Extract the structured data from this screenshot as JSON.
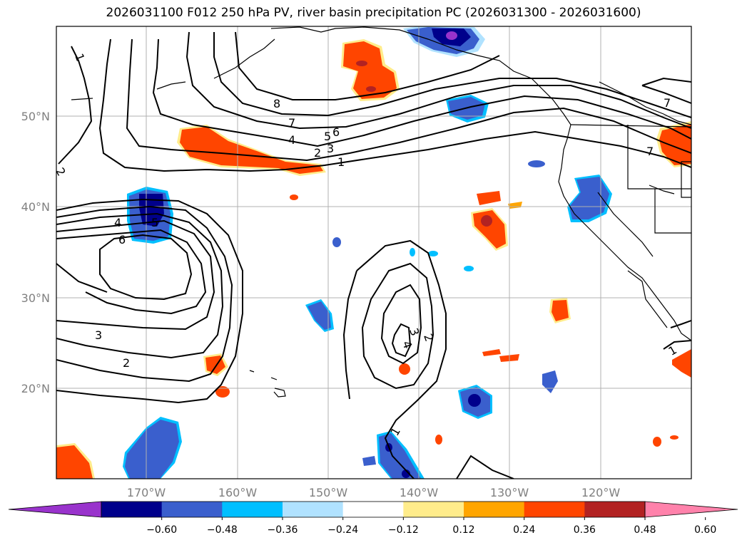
{
  "title": "2026031100 F012 250 hPa PV, river basin precipitation PC (2026031300 - 2026031600)",
  "lat_labels": [
    "50°N",
    "40°N",
    "30°N",
    "20°N"
  ],
  "lon_labels": [
    "170°W",
    "160°W",
    "150°W",
    "140°W",
    "130°W",
    "120°W"
  ],
  "colorbar": {
    "colors": [
      "#9933cc",
      "#00008b",
      "#3a5fcd",
      "#00bfff",
      "#b0e2ff",
      "#ffffff",
      "#ffec8b",
      "#ffa500",
      "#ff4500",
      "#b22222",
      "#ff82ab"
    ],
    "labels": [
      "−0.60",
      "−0.48",
      "−0.36",
      "−0.24",
      "−0.12",
      "0.12",
      "0.24",
      "0.36",
      "0.48",
      "0.60"
    ]
  },
  "contour_labels": [
    "1",
    "2",
    "8",
    "7",
    "6",
    "5",
    "4",
    "3",
    "2",
    "1",
    "7",
    "7",
    "4",
    "5",
    "6",
    "3",
    "2",
    "4",
    "3",
    "2",
    "1",
    "1"
  ]
}
